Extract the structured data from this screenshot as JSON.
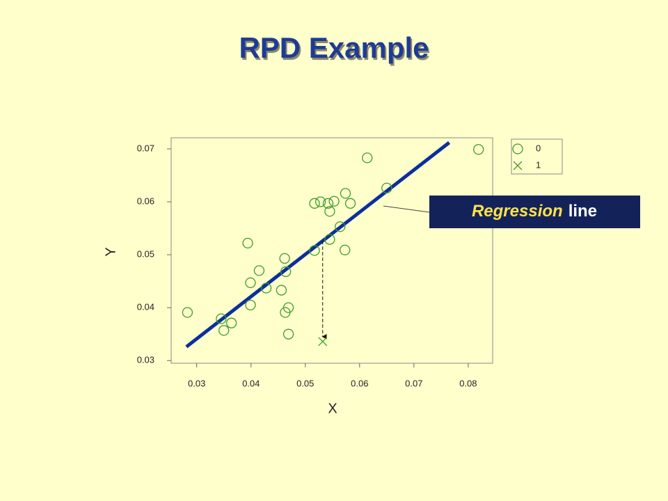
{
  "chart_data": {
    "type": "scatter",
    "title": "RPD Example",
    "xlabel": "X",
    "ylabel": "Y",
    "xlim": [
      0.0253,
      0.0845
    ],
    "ylim": [
      0.0295,
      0.0721
    ],
    "xticks": [
      0.03,
      0.04,
      0.05,
      0.06,
      0.07,
      0.08
    ],
    "yticks": [
      0.03,
      0.04,
      0.05,
      0.06,
      0.07
    ],
    "series": [
      {
        "name": "0",
        "color": "#3f9a2a",
        "marker": "circle",
        "x": [
          0.0283,
          0.0345,
          0.035,
          0.0364,
          0.0394,
          0.0399,
          0.0399,
          0.0415,
          0.0428,
          0.0456,
          0.0462,
          0.0464,
          0.0463,
          0.0469,
          0.0469,
          0.0517,
          0.0517,
          0.0528,
          0.0542,
          0.0545,
          0.0545,
          0.0553,
          0.0564,
          0.0573,
          0.0574,
          0.0583,
          0.0614,
          0.065,
          0.0819
        ],
        "values": [
          0.0391,
          0.0379,
          0.0357,
          0.0371,
          0.0522,
          0.0447,
          0.0405,
          0.047,
          0.0437,
          0.0433,
          0.0493,
          0.0468,
          0.0391,
          0.04,
          0.035,
          0.0508,
          0.0597,
          0.06,
          0.0597,
          0.0582,
          0.0529,
          0.0601,
          0.0553,
          0.0509,
          0.0616,
          0.0597,
          0.0683,
          0.0626,
          0.0699
        ]
      },
      {
        "name": "1",
        "color": "#3f9a2a",
        "marker": "x",
        "x": [
          0.0532
        ],
        "values": [
          0.0336
        ]
      }
    ],
    "regression_line": {
      "color": "#0b2f9e",
      "x": [
        0.0281,
        0.0765
      ],
      "values": [
        0.0326,
        0.0712
      ]
    },
    "annotation": {
      "emphasis": "Regression",
      "text": "line"
    }
  }
}
